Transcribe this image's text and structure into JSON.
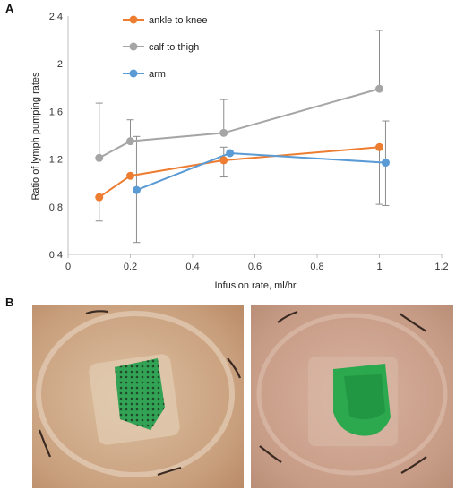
{
  "panels": {
    "a_label": "A",
    "b_label": "B"
  },
  "chart_data": {
    "type": "line",
    "title": "",
    "xlabel": "Infusion rate, ml/hr",
    "ylabel": "Ratio of lymph pumping rates",
    "xlim": [
      0,
      1.2
    ],
    "ylim": [
      0.4,
      2.4
    ],
    "xticks": [
      0,
      0.2,
      0.4,
      0.6,
      0.8,
      1,
      1.2
    ],
    "xtick_labels": [
      "0",
      "0.2",
      "0.4",
      "0.6",
      "0.8",
      "1",
      "1.2"
    ],
    "yticks": [
      0.4,
      0.8,
      1.2,
      1.6,
      2,
      2.4
    ],
    "ytick_labels": [
      "0.4",
      "0.8",
      "1.2",
      "1.6",
      "2",
      "2.4"
    ],
    "grid": false,
    "legend_position": "top-left",
    "series": [
      {
        "name": "ankle to knee",
        "color": "#ED7D31",
        "x": [
          0.1,
          0.2,
          0.5,
          1.0
        ],
        "y": [
          0.88,
          1.06,
          1.19,
          1.3
        ],
        "err_low": [
          0.68,
          null,
          1.05,
          0.82
        ],
        "err_high": [
          null,
          null,
          1.3,
          null
        ]
      },
      {
        "name": "calf to thigh",
        "color": "#A5A5A5",
        "x": [
          0.1,
          0.2,
          0.5,
          1.0
        ],
        "y": [
          1.21,
          1.35,
          1.42,
          1.79
        ],
        "err_low": [
          null,
          null,
          null,
          null
        ],
        "err_high": [
          1.67,
          1.53,
          1.7,
          2.28
        ]
      },
      {
        "name": "arm",
        "color": "#5B9BD5",
        "x": [
          0.22,
          0.52,
          1.02
        ],
        "y": [
          0.94,
          1.25,
          1.17
        ],
        "err_low": [
          0.5,
          null,
          0.81
        ],
        "err_high": [
          1.39,
          null,
          1.52
        ]
      }
    ]
  },
  "photos": {
    "left": {
      "patch_color": "#1f9e4a",
      "skin_color": "#c9a07e"
    },
    "right": {
      "patch_color": "#23a84a",
      "skin_color": "#c79c86"
    }
  }
}
